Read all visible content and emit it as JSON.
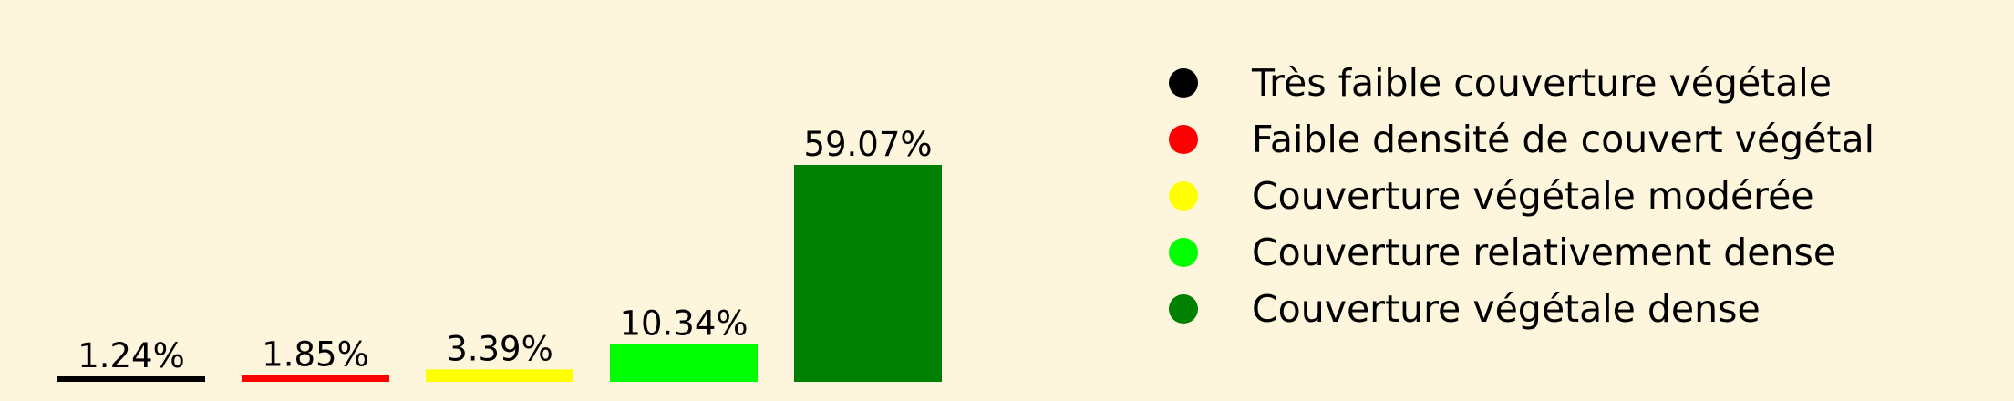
{
  "chart_data": {
    "type": "bar",
    "categories": [
      "Très faible couverture végétale",
      "Faible densité de couvert végétal",
      "Couverture végétale modérée",
      "Couverture relativement dense",
      "Couverture végétale dense"
    ],
    "values": [
      1.24,
      1.85,
      3.39,
      10.34,
      59.07
    ],
    "value_labels": [
      "1.24%",
      "1.85%",
      "3.39%",
      "10.34%",
      "59.07%"
    ],
    "colors": [
      "#000000",
      "#ff0000",
      "#ffff00",
      "#00ff00",
      "#008000"
    ],
    "ylim": [
      0,
      61
    ],
    "grid": false,
    "legend_position": "right",
    "title": "",
    "xlabel": "",
    "ylabel": ""
  },
  "background_color": "#fdf6dc"
}
